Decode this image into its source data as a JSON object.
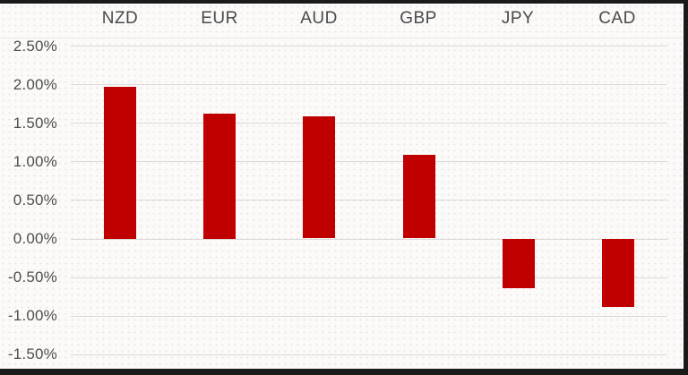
{
  "window": {
    "frame_color": "#1a1a1a",
    "background_color": "#fbfaf9"
  },
  "chart_data": {
    "type": "bar",
    "orientation": "vertical",
    "categories": [
      "NZD",
      "EUR",
      "AUD",
      "GBP",
      "JPY",
      "CAD"
    ],
    "values": [
      1.97,
      1.62,
      1.58,
      1.08,
      -0.64,
      -0.88
    ],
    "value_unit": "percent",
    "category_label_position": "top",
    "bar_color": "#c00000",
    "grid": true,
    "legend": false,
    "y_axis": {
      "min": -1.5,
      "max": 2.5,
      "step": 0.5,
      "ticks": [
        {
          "label": "2.50%",
          "value": 2.5
        },
        {
          "label": "2.00%",
          "value": 2.0
        },
        {
          "label": "1.50%",
          "value": 1.5
        },
        {
          "label": "1.00%",
          "value": 1.0
        },
        {
          "label": "0.50%",
          "value": 0.5
        },
        {
          "label": "0.00%",
          "value": 0.0
        },
        {
          "label": "-0.50%",
          "value": -0.5
        },
        {
          "label": "-1.00%",
          "value": -1.0
        },
        {
          "label": "-1.50%",
          "value": -1.5
        }
      ]
    }
  }
}
